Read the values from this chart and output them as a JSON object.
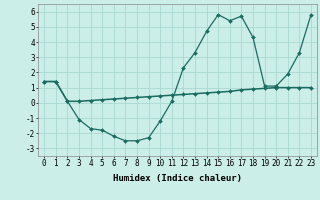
{
  "xlabel": "Humidex (Indice chaleur)",
  "background_color": "#cceee8",
  "grid_color": "#aad8d2",
  "line_color": "#1a6b60",
  "x_vals": [
    0,
    1,
    2,
    3,
    4,
    5,
    6,
    7,
    8,
    9,
    10,
    11,
    12,
    13,
    14,
    15,
    16,
    17,
    18,
    19,
    20,
    21,
    22,
    23
  ],
  "line1_y": [
    1.4,
    1.4,
    0.1,
    -1.1,
    -1.7,
    -1.8,
    -2.2,
    -2.5,
    -2.5,
    -2.3,
    -1.2,
    0.1,
    2.3,
    3.3,
    4.7,
    5.8,
    5.4,
    5.7,
    4.3,
    1.1,
    1.1,
    1.9,
    3.3,
    5.8
  ],
  "line2_y": [
    1.4,
    1.4,
    0.1,
    0.1,
    0.15,
    0.2,
    0.25,
    0.3,
    0.35,
    0.4,
    0.45,
    0.5,
    0.55,
    0.6,
    0.65,
    0.7,
    0.75,
    0.85,
    0.9,
    0.95,
    1.0,
    1.0,
    1.0,
    1.0
  ],
  "ylim": [
    -3.5,
    6.5
  ],
  "xlim": [
    -0.5,
    23.5
  ],
  "yticks": [
    -3,
    -2,
    -1,
    0,
    1,
    2,
    3,
    4,
    5,
    6
  ],
  "xticks": [
    0,
    1,
    2,
    3,
    4,
    5,
    6,
    7,
    8,
    9,
    10,
    11,
    12,
    13,
    14,
    15,
    16,
    17,
    18,
    19,
    20,
    21,
    22,
    23
  ],
  "tick_fontsize": 5.5,
  "label_fontsize": 6.5
}
